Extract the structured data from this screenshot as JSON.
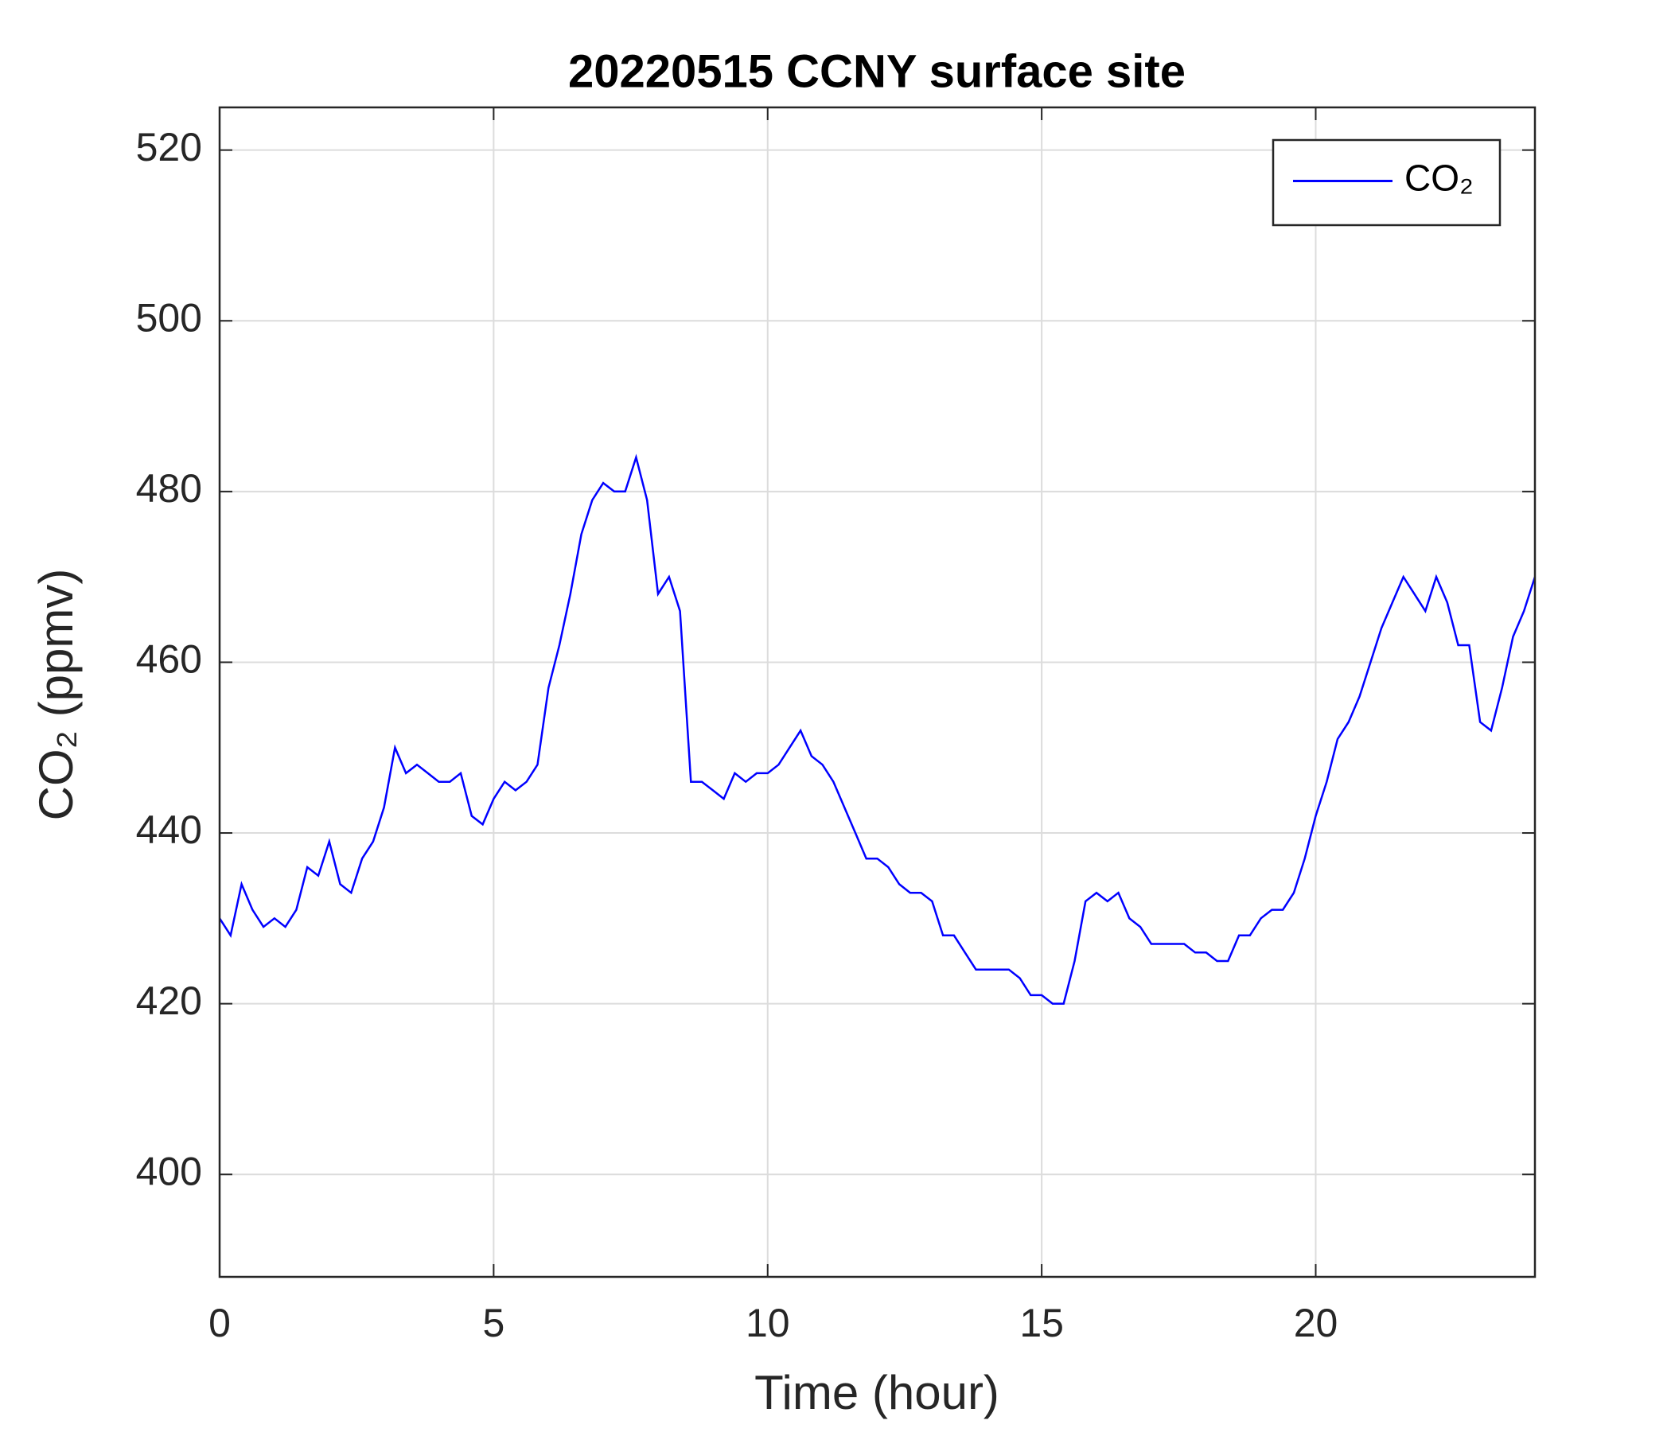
{
  "chart_data": {
    "type": "line",
    "title": "20220515 CCNY surface site",
    "x_label": "Time (hour)",
    "y_label": "CO₂ (ppmv)",
    "xlim": [
      0,
      24
    ],
    "xticks": [
      0,
      5,
      10,
      15,
      20
    ],
    "ylim": [
      388,
      525
    ],
    "yticks": [
      400,
      420,
      440,
      460,
      480,
      500,
      520
    ],
    "grid": true,
    "legend": "upper right",
    "x": [
      0,
      0.2,
      0.4,
      0.6,
      0.8,
      1,
      1.2,
      1.4,
      1.6,
      1.8,
      2,
      2.2,
      2.4,
      2.6,
      2.8,
      3,
      3.2,
      3.4,
      3.6,
      3.8,
      4,
      4.2,
      4.4,
      4.6,
      4.8,
      5,
      5.2,
      5.4,
      5.6,
      5.8,
      6,
      6.2,
      6.4,
      6.6,
      6.8,
      7,
      7.2,
      7.4,
      7.6,
      7.8,
      8,
      8.2,
      8.4,
      8.6,
      8.8,
      9,
      9.2,
      9.4,
      9.6,
      9.8,
      10,
      10.2,
      10.4,
      10.6,
      10.8,
      11,
      11.2,
      11.4,
      11.6,
      11.8,
      12,
      12.2,
      12.4,
      12.6,
      12.8,
      13,
      13.2,
      13.4,
      13.6,
      13.8,
      14,
      14.2,
      14.4,
      14.6,
      14.8,
      15,
      15.2,
      15.4,
      15.6,
      15.8,
      16,
      16.2,
      16.4,
      16.6,
      16.8,
      17,
      17.2,
      17.4,
      17.6,
      17.8,
      18,
      18.2,
      18.4,
      18.6,
      18.8,
      19,
      19.2,
      19.4,
      19.6,
      19.8,
      20,
      20.2,
      20.4,
      20.6,
      20.8,
      21,
      21.2,
      21.4,
      21.6,
      21.8,
      22,
      22.2,
      22.4,
      22.6,
      22.8,
      23,
      23.2,
      23.4,
      23.6,
      23.8,
      24
    ],
    "series": [
      {
        "name": "CO₂",
        "color": "#0000ff",
        "values": [
          430,
          428,
          434,
          431,
          429,
          430,
          429,
          431,
          436,
          435,
          439,
          434,
          433,
          437,
          439,
          443,
          450,
          447,
          448,
          447,
          446,
          446,
          447,
          442,
          441,
          444,
          446,
          445,
          446,
          448,
          457,
          462,
          468,
          475,
          479,
          481,
          480,
          480,
          484,
          479,
          468,
          470,
          466,
          446,
          446,
          445,
          444,
          447,
          446,
          447,
          447,
          448,
          450,
          452,
          449,
          448,
          446,
          443,
          440,
          437,
          437,
          436,
          434,
          433,
          433,
          432,
          428,
          428,
          426,
          424,
          424,
          424,
          424,
          423,
          421,
          421,
          420,
          420,
          425,
          432,
          433,
          432,
          433,
          430,
          429,
          427,
          427,
          427,
          427,
          426,
          426,
          425,
          425,
          428,
          428,
          430,
          431,
          431,
          433,
          437,
          442,
          446,
          451,
          453,
          456,
          460,
          464,
          467,
          470,
          468,
          466,
          470,
          467,
          462,
          462,
          453,
          452,
          457,
          463,
          466,
          470
        ]
      }
    ]
  }
}
